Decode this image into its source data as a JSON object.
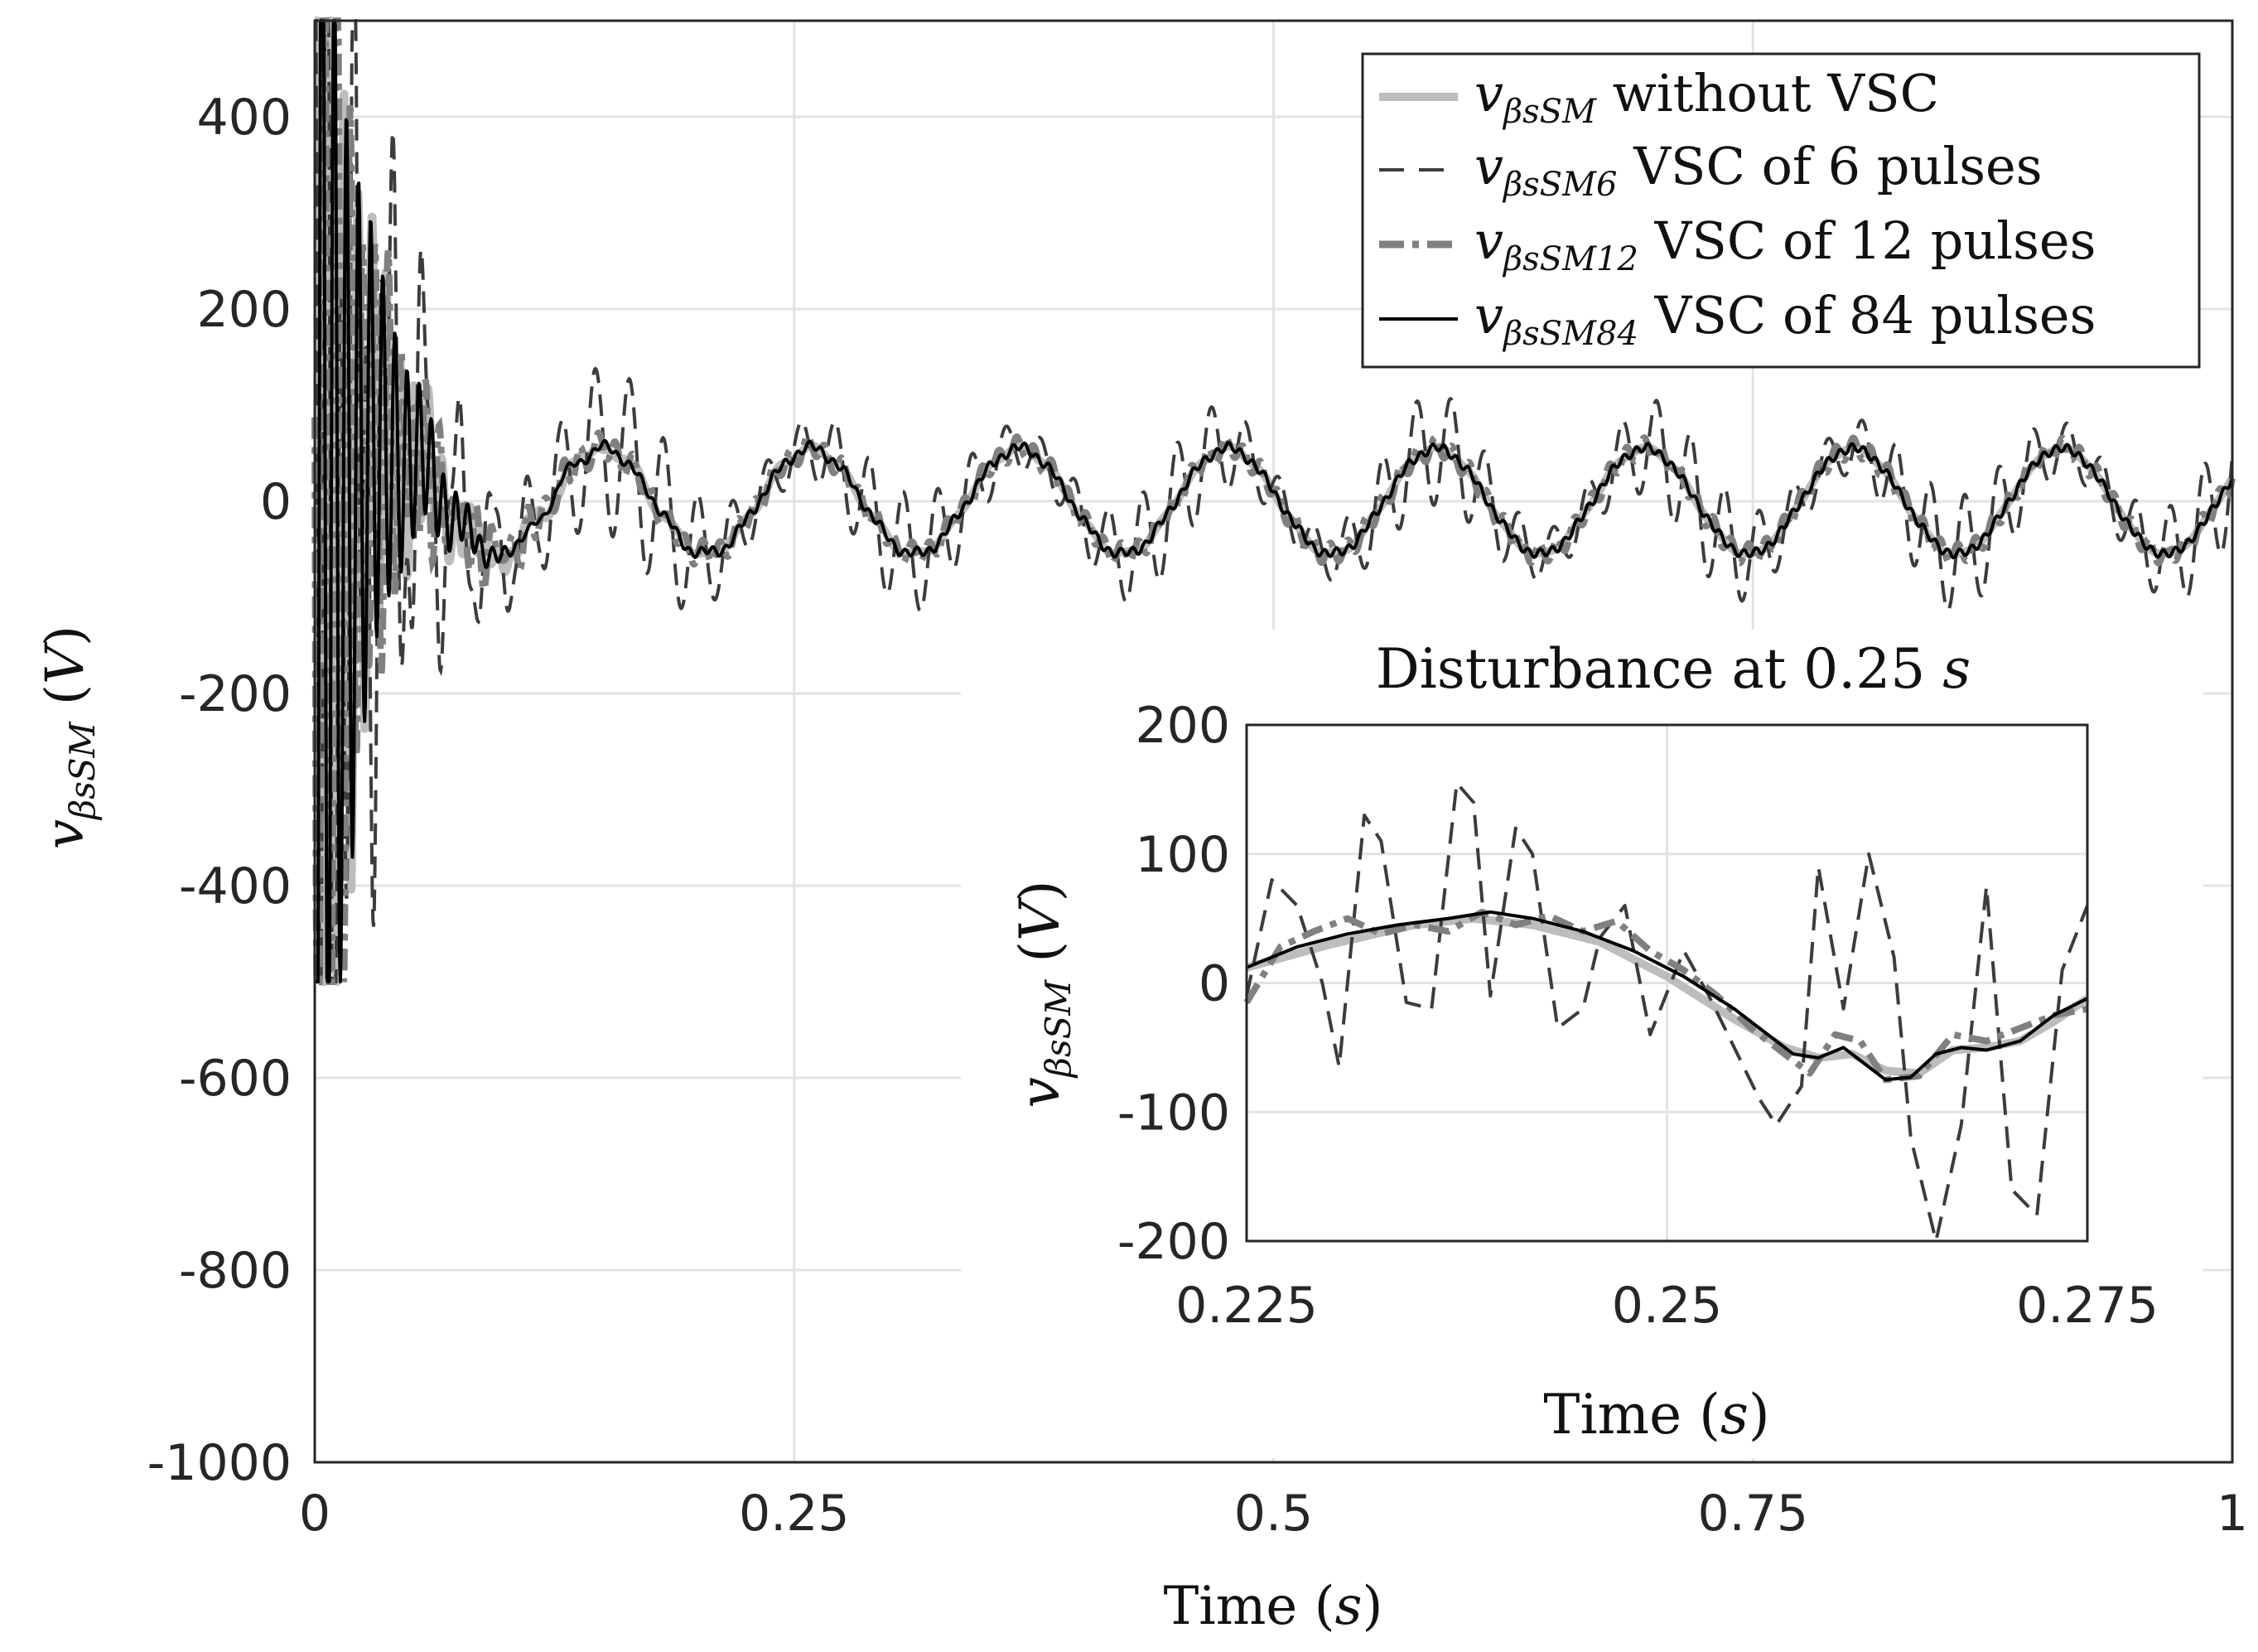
{
  "colors": {
    "without": "#bdbdbd",
    "vsc6": "#3c3c3c",
    "vsc12": "#808080",
    "vsc84": "#000000",
    "grid": "#e3e3e3",
    "axis": "#262626"
  },
  "chart_data": [
    {
      "id": "main",
      "type": "line",
      "xlabel": "Time (s)",
      "ylabel": "vβsSM (V)",
      "xlim": [
        0,
        1
      ],
      "ylim": [
        -1000,
        500
      ],
      "xticks": [
        0,
        0.25,
        0.5,
        0.75,
        1
      ],
      "xtick_labels": [
        "0",
        "0.25",
        "0.5",
        "0.75",
        "1"
      ],
      "yticks": [
        400,
        200,
        0,
        -200,
        -400,
        -600,
        -800,
        -1000
      ],
      "ytick_labels": [
        "400",
        "200",
        "0",
        "-200",
        "-400",
        "-600",
        "-800",
        "-1000"
      ],
      "grid": true,
      "legend": {
        "placement": "top-right",
        "entries": [
          {
            "symbol": "vβsSM",
            "text": "without VSC"
          },
          {
            "symbol": "vβsSM6",
            "text": "VSC of 6 pulses"
          },
          {
            "symbol": "vβsSM12",
            "text": "VSC of 12 pulses"
          },
          {
            "symbol": "vβsSM84",
            "text": "VSC of 84 pulses"
          }
        ]
      },
      "waveform": {
        "fundamental_hz": 9.2,
        "steady_amplitude_v": 55,
        "vsc6_ripple_v": 60,
        "startup_saturation_v": [
          -500,
          500
        ]
      }
    },
    {
      "id": "inset",
      "type": "line",
      "title": "Disturbance at 0.25 s",
      "xlabel": "Time (s)",
      "ylabel": "vβsSM (V)",
      "xlim": [
        0.225,
        0.275
      ],
      "ylim": [
        -200,
        200
      ],
      "xticks": [
        0.225,
        0.25,
        0.275
      ],
      "xtick_labels": [
        "0.225",
        "0.25",
        "0.275"
      ],
      "yticks": [
        200,
        100,
        0,
        -100,
        -200
      ],
      "ytick_labels": [
        "200",
        "100",
        "0",
        "-100",
        "-200"
      ],
      "grid": true,
      "series": [
        {
          "name": "vβsSM",
          "x": [
            0.225,
            0.23,
            0.235,
            0.2385,
            0.242,
            0.246,
            0.25,
            0.254,
            0.257,
            0.259,
            0.261,
            0.263,
            0.265,
            0.267,
            0.269,
            0.271,
            0.273,
            0.275
          ],
          "values": [
            12,
            30,
            45,
            50,
            45,
            32,
            5,
            -28,
            -50,
            -58,
            -55,
            -68,
            -70,
            -52,
            -50,
            -45,
            -30,
            -12
          ]
        },
        {
          "name": "vβsSM6",
          "x": [
            0.225,
            0.2265,
            0.228,
            0.2295,
            0.2305,
            0.232,
            0.233,
            0.2345,
            0.236,
            0.2375,
            0.2385,
            0.2395,
            0.241,
            0.242,
            0.2435,
            0.245,
            0.246,
            0.2475,
            0.249,
            0.251,
            0.2525,
            0.254,
            0.2555,
            0.2565,
            0.258,
            0.259,
            0.2605,
            0.262,
            0.2635,
            0.2645,
            0.266,
            0.2675,
            0.269,
            0.2705,
            0.272,
            0.2735,
            0.275
          ],
          "values": [
            -10,
            80,
            60,
            0,
            -65,
            130,
            110,
            -15,
            -20,
            155,
            140,
            -10,
            120,
            100,
            -35,
            -20,
            35,
            60,
            -40,
            25,
            -10,
            -50,
            -90,
            -110,
            -80,
            90,
            -20,
            100,
            20,
            -120,
            -200,
            -110,
            75,
            -160,
            -180,
            10,
            60
          ]
        },
        {
          "name": "vβsSM12",
          "x": [
            0.225,
            0.227,
            0.229,
            0.231,
            0.233,
            0.235,
            0.237,
            0.239,
            0.241,
            0.243,
            0.245,
            0.247,
            0.249,
            0.251,
            0.253,
            0.255,
            0.257,
            0.2585,
            0.26,
            0.2615,
            0.263,
            0.265,
            0.267,
            0.269,
            0.271,
            0.273,
            0.275
          ],
          "values": [
            -15,
            28,
            40,
            50,
            38,
            45,
            40,
            55,
            45,
            52,
            40,
            48,
            25,
            10,
            -10,
            -35,
            -55,
            -70,
            -40,
            -45,
            -75,
            -72,
            -40,
            -45,
            -35,
            -25,
            -20
          ]
        },
        {
          "name": "vβsSM84",
          "x": [
            0.225,
            0.228,
            0.231,
            0.234,
            0.237,
            0.2395,
            0.242,
            0.245,
            0.248,
            0.251,
            0.254,
            0.256,
            0.2575,
            0.259,
            0.2605,
            0.2615,
            0.263,
            0.2645,
            0.266,
            0.2675,
            0.269,
            0.271,
            0.273,
            0.275
          ],
          "values": [
            12,
            28,
            38,
            45,
            50,
            55,
            50,
            40,
            25,
            5,
            -20,
            -40,
            -55,
            -58,
            -50,
            -60,
            -75,
            -73,
            -55,
            -50,
            -52,
            -45,
            -25,
            -12
          ]
        }
      ]
    }
  ]
}
